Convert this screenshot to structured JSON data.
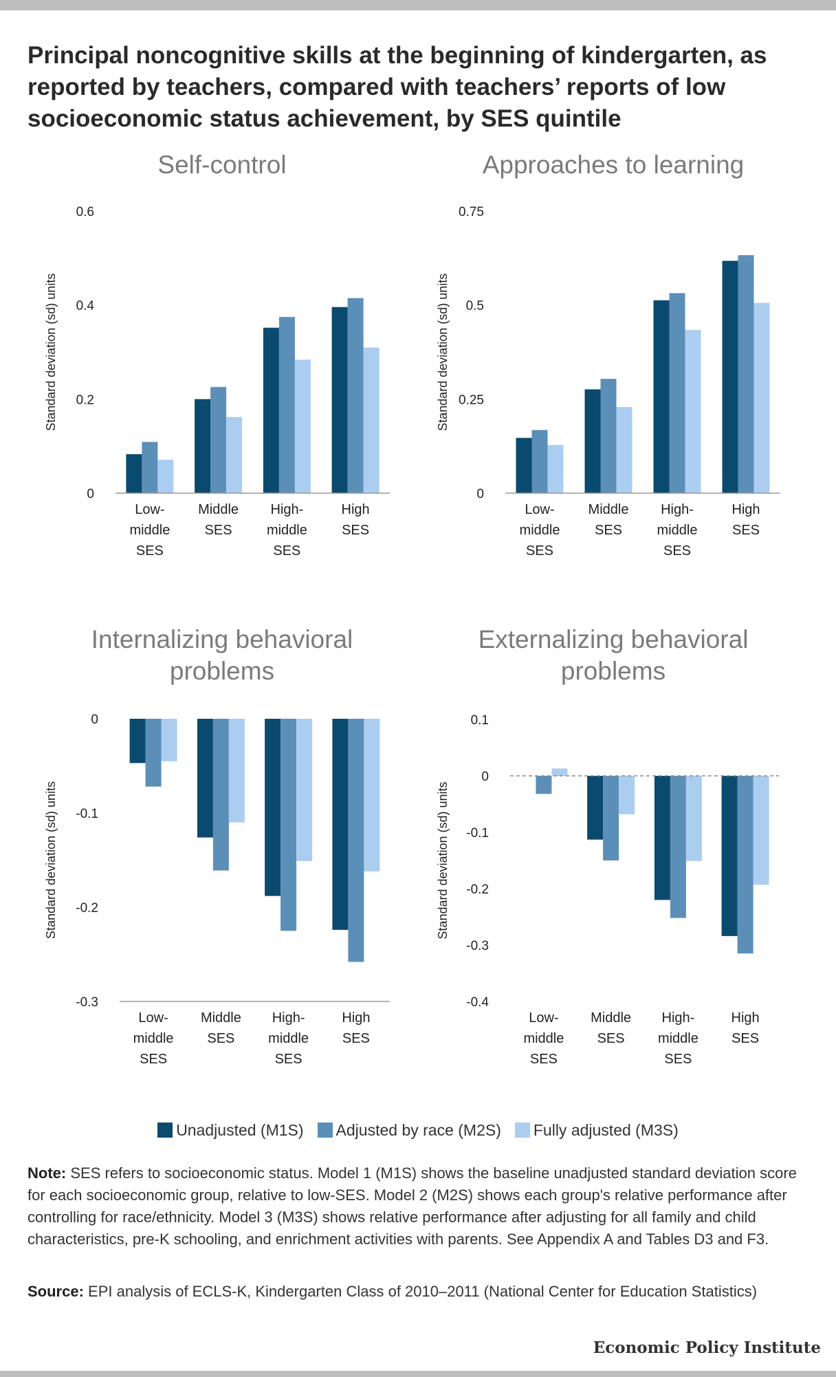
{
  "title": "Principal noncognitive skills at the beginning of kindergarten, as reported by teachers, compared with teachers’ reports of low socioeconomic status achievement, by SES quintile",
  "colors": {
    "m1": "#0b4a6f",
    "m2": "#5b8fb8",
    "m3": "#abcdf0"
  },
  "legend": [
    {
      "label": "Unadjusted (M1S)",
      "color": "#0b4a6f"
    },
    {
      "label": "Adjusted by race (M2S)",
      "color": "#5b8fb8"
    },
    {
      "label": "Fully adjusted (M3S)",
      "color": "#abcdf0"
    }
  ],
  "note": {
    "label": "Note:",
    "text": "SES refers to socioeconomic status. Model 1 (M1S) shows the baseline unadjusted standard deviation score for each socioeconomic group, relative to low-SES. Model 2 (M2S) shows each group's relative performance after controlling for race/ethnicity. Model 3 (M3S) shows relative performance after adjusting for all family and child characteristics, pre-K schooling, and enrichment activities with parents. See Appendix A and Tables D3 and F3."
  },
  "source": {
    "label": "Source:",
    "text": "EPI analysis of ECLS-K, Kindergarten Class of 2010–2011 (National Center for Education Statistics)"
  },
  "logo": "Economic Policy Institute",
  "chart_data": [
    {
      "type": "bar",
      "title": [
        "Self-control"
      ],
      "ylabel": "Standard deviation (sd) units",
      "categories": [
        [
          "Low-",
          "middle",
          "SES"
        ],
        [
          "Middle",
          "SES"
        ],
        [
          "High-",
          "middle",
          "SES"
        ],
        [
          "High",
          "SES"
        ]
      ],
      "ylim": [
        0,
        0.6
      ],
      "yticks": [
        0,
        0.2,
        0.4,
        0.6
      ],
      "ytick_labels": [
        "0",
        "0.2",
        "0.4",
        "0.6"
      ],
      "series": [
        {
          "name": "Unadjusted (M1S)",
          "values": [
            0.083,
            0.2,
            0.352,
            0.396
          ]
        },
        {
          "name": "Adjusted by race (M2S)",
          "values": [
            0.109,
            0.226,
            0.375,
            0.415
          ]
        },
        {
          "name": "Fully adjusted (M3S)",
          "values": [
            0.071,
            0.162,
            0.284,
            0.31
          ]
        }
      ]
    },
    {
      "type": "bar",
      "title": [
        "Approaches to learning"
      ],
      "ylabel": "Standard deviation (sd) units",
      "categories": [
        [
          "Low-",
          "middle",
          "SES"
        ],
        [
          "Middle",
          "SES"
        ],
        [
          "High-",
          "middle",
          "SES"
        ],
        [
          "High",
          "SES"
        ]
      ],
      "ylim": [
        0,
        0.75
      ],
      "yticks": [
        0,
        0.25,
        0.5,
        0.75
      ],
      "ytick_labels": [
        "0",
        "0.25",
        "0.5",
        "0.75"
      ],
      "series": [
        {
          "name": "Unadjusted (M1S)",
          "values": [
            0.147,
            0.276,
            0.513,
            0.618
          ]
        },
        {
          "name": "Adjusted by race (M2S)",
          "values": [
            0.168,
            0.304,
            0.532,
            0.633
          ]
        },
        {
          "name": "Fully adjusted (M3S)",
          "values": [
            0.128,
            0.229,
            0.434,
            0.506
          ]
        }
      ]
    },
    {
      "type": "bar",
      "title": [
        "Internalizing behavioral",
        "problems"
      ],
      "ylabel": "Standard deviation (sd) units",
      "categories": [
        [
          "Low-",
          "middle",
          "SES"
        ],
        [
          "Middle",
          "SES"
        ],
        [
          "High-",
          "middle",
          "SES"
        ],
        [
          "High",
          "SES"
        ]
      ],
      "ylim": [
        -0.3,
        0
      ],
      "yticks": [
        0,
        -0.1,
        -0.2,
        -0.3
      ],
      "ytick_labels": [
        "0",
        "-0.1",
        "-0.2",
        "-0.3"
      ],
      "series": [
        {
          "name": "Unadjusted (M1S)",
          "values": [
            -0.047,
            -0.126,
            -0.188,
            -0.224
          ]
        },
        {
          "name": "Adjusted by race (M2S)",
          "values": [
            -0.072,
            -0.161,
            -0.225,
            -0.258
          ]
        },
        {
          "name": "Fully adjusted (M3S)",
          "values": [
            -0.045,
            -0.11,
            -0.151,
            -0.162
          ]
        }
      ]
    },
    {
      "type": "bar",
      "title": [
        "Externalizing behavioral",
        "problems"
      ],
      "ylabel": "Standard deviation (sd) units",
      "categories": [
        [
          "Low-",
          "middle",
          "SES"
        ],
        [
          "Middle",
          "SES"
        ],
        [
          "High-",
          "middle",
          "SES"
        ],
        [
          "High",
          "SES"
        ]
      ],
      "ylim": [
        -0.4,
        0.1
      ],
      "yticks": [
        0.1,
        0,
        -0.1,
        -0.2,
        -0.3,
        -0.4
      ],
      "ytick_labels": [
        "0.1",
        "0",
        "-0.1",
        "-0.2",
        "-0.3",
        "-0.4"
      ],
      "zero_line": "dashed",
      "series": [
        {
          "name": "Unadjusted (M1S)",
          "values": [
            0.0,
            -0.113,
            -0.22,
            -0.284
          ]
        },
        {
          "name": "Adjusted by race (M2S)",
          "values": [
            -0.032,
            -0.15,
            -0.252,
            -0.315
          ]
        },
        {
          "name": "Fully adjusted (M3S)",
          "values": [
            0.013,
            -0.068,
            -0.151,
            -0.193
          ]
        }
      ]
    }
  ]
}
